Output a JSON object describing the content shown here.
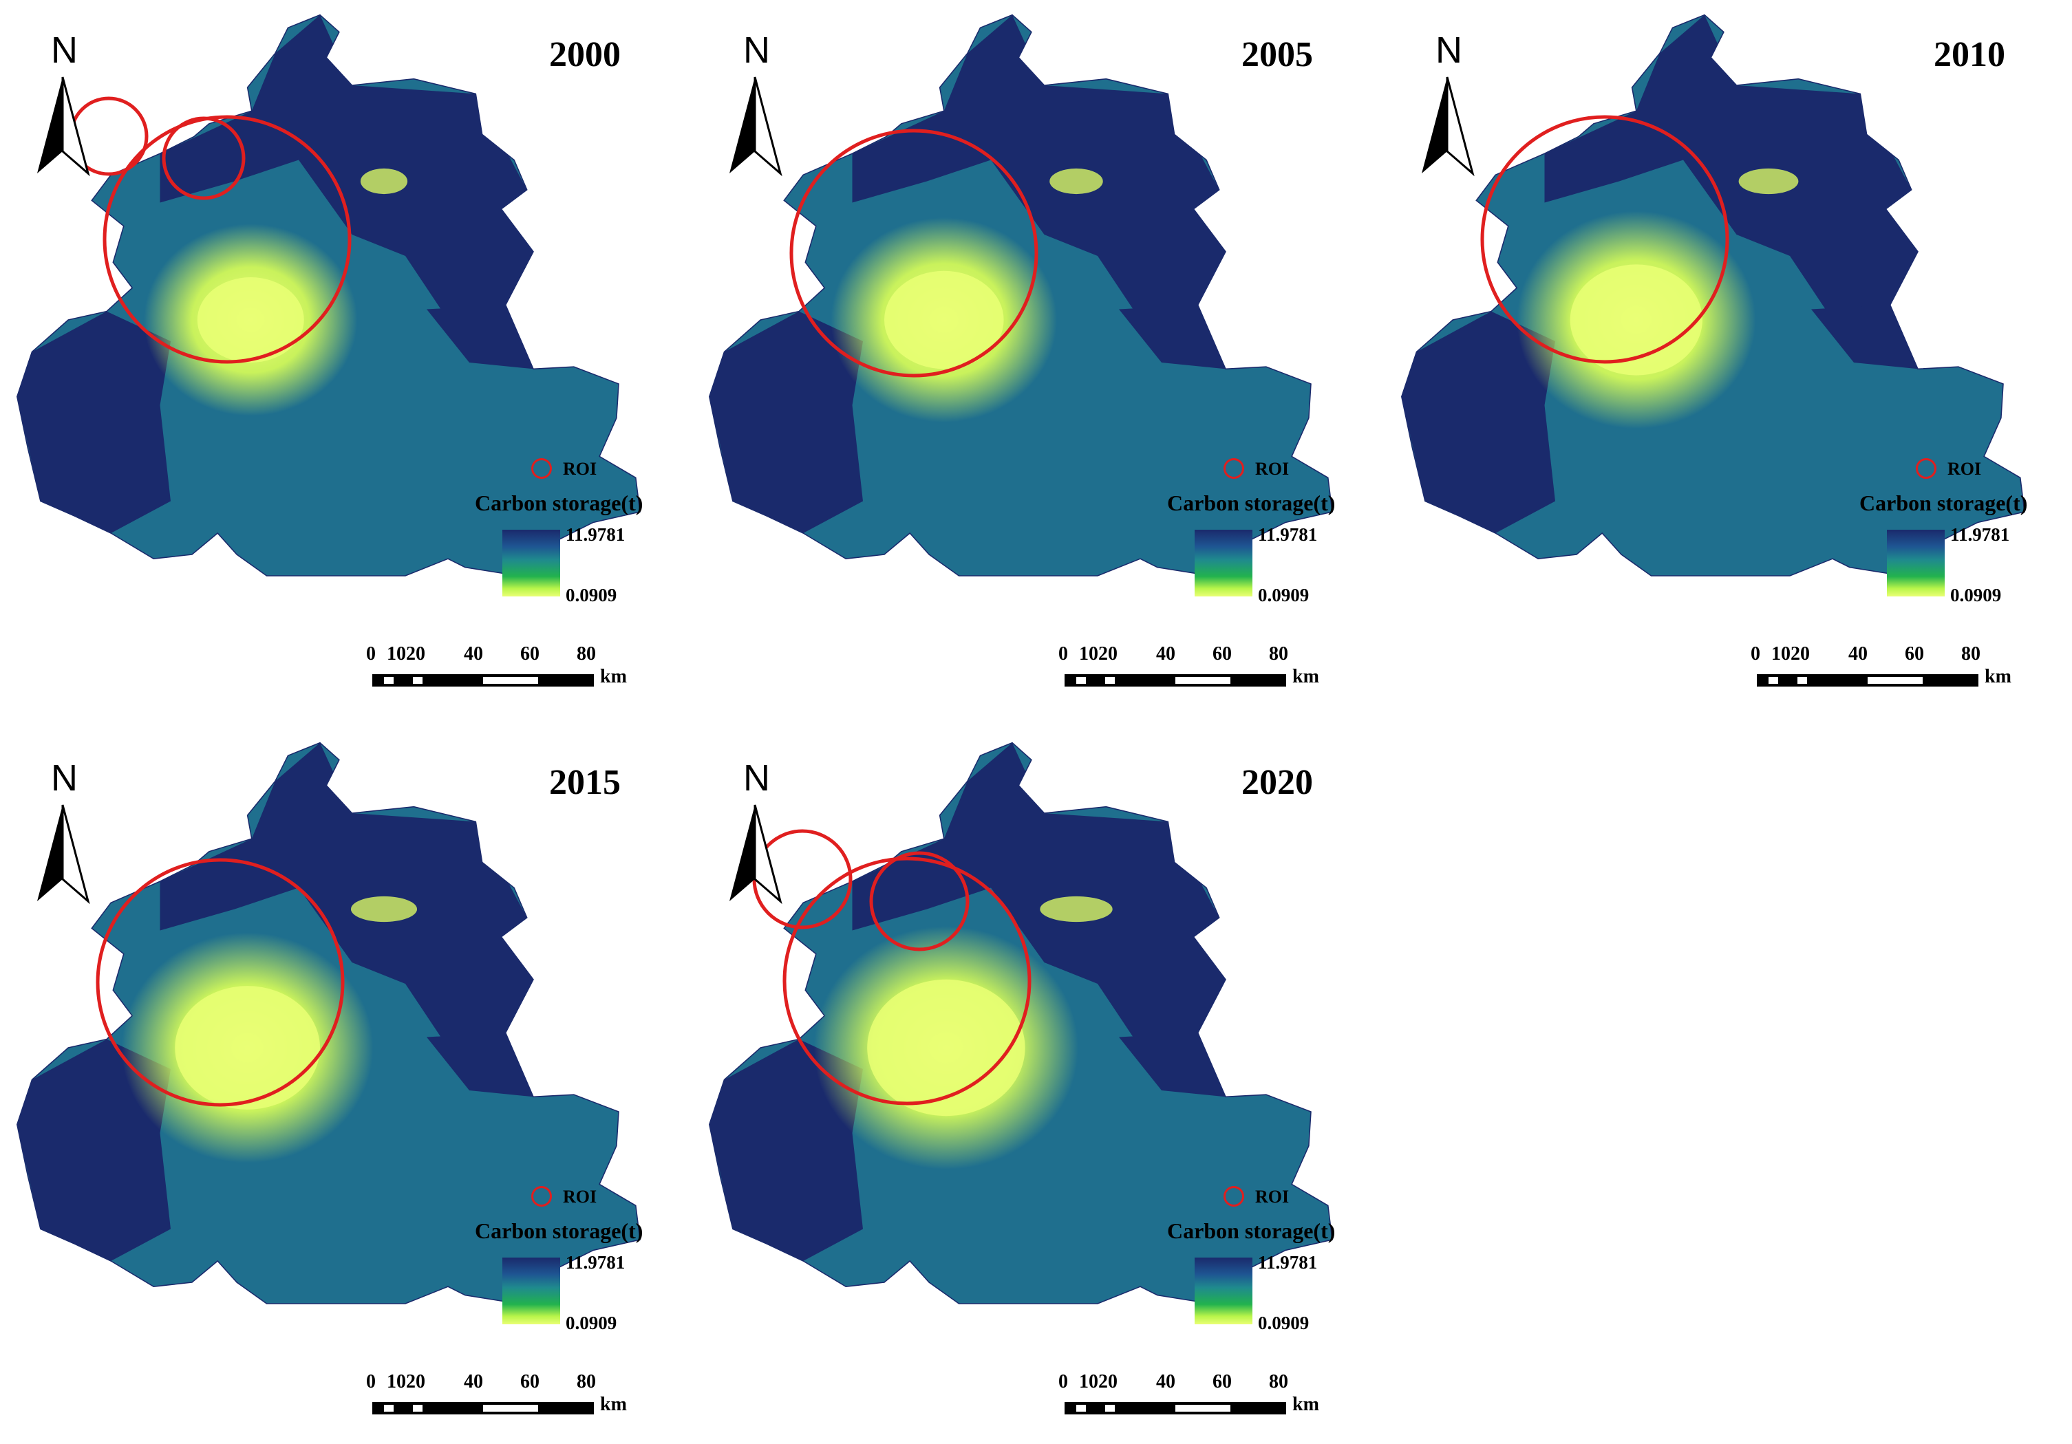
{
  "panels": [
    {
      "year": "2000",
      "north": "N",
      "legend": {
        "roi": "ROI",
        "title": "Carbon storage(t)",
        "max": "11.9781",
        "min": "0.0909"
      },
      "scale": {
        "ticks": [
          "0",
          "10",
          "20",
          "40",
          "60",
          "80"
        ],
        "unit": "km"
      },
      "roi_circles": 3
    },
    {
      "year": "2005",
      "north": "N",
      "legend": {
        "roi": "ROI",
        "title": "Carbon storage(t)",
        "max": "11.9781",
        "min": "0.0909"
      },
      "scale": {
        "ticks": [
          "0",
          "10",
          "20",
          "40",
          "60",
          "80"
        ],
        "unit": "km"
      },
      "roi_circles": 1
    },
    {
      "year": "2010",
      "north": "N",
      "legend": {
        "roi": "ROI",
        "title": "Carbon storage(t)",
        "max": "11.9781",
        "min": "0.0909"
      },
      "scale": {
        "ticks": [
          "0",
          "10",
          "20",
          "40",
          "60",
          "80"
        ],
        "unit": "km"
      },
      "roi_circles": 1
    },
    {
      "year": "2015",
      "north": "N",
      "legend": {
        "roi": "ROI",
        "title": "Carbon storage(t)",
        "max": "11.9781",
        "min": "0.0909"
      },
      "scale": {
        "ticks": [
          "0",
          "10",
          "20",
          "40",
          "60",
          "80"
        ],
        "unit": "km"
      },
      "roi_circles": 1
    },
    {
      "year": "2020",
      "north": "N",
      "legend": {
        "roi": "ROI",
        "title": "Carbon storage(t)",
        "max": "11.9781",
        "min": "0.0909"
      },
      "scale": {
        "ticks": [
          "0",
          "10",
          "20",
          "40",
          "60",
          "80"
        ],
        "unit": "km"
      },
      "roi_circles": 3
    }
  ],
  "colors": {
    "high_storage": "#1a2a6c",
    "mid_storage": "#1f6f8e",
    "low_storage": "#e9ff74",
    "roi": "#e01f1f"
  }
}
